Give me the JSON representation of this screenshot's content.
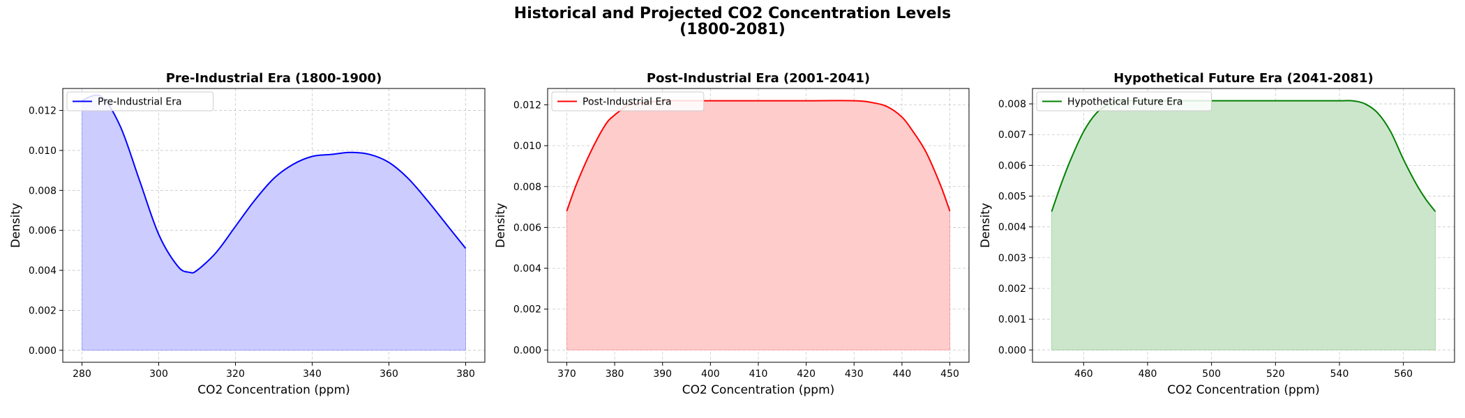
{
  "figure": {
    "title_line1": "Historical and Projected CO2 Concentration Levels",
    "title_line2": "(1800-2081)"
  },
  "chart_data": [
    {
      "type": "area",
      "title": "Pre-Industrial Era (1800-1900)",
      "xlabel": "CO2 Concentration (ppm)",
      "ylabel": "Density",
      "xlim": [
        275,
        385
      ],
      "ylim": [
        -0.0006,
        0.0131
      ],
      "xticks": [
        280,
        300,
        320,
        340,
        360,
        380
      ],
      "yticks": [
        0.0,
        0.002,
        0.004,
        0.006,
        0.008,
        0.01,
        0.012
      ],
      "ytick_labels": [
        "0.000",
        "0.002",
        "0.004",
        "0.006",
        "0.008",
        "0.010",
        "0.012"
      ],
      "grid": true,
      "legend": "upper-left",
      "series": [
        {
          "name": "Pre-Industrial Era",
          "color": "#0000ff",
          "fill": "#ccccff",
          "x": [
            280,
            285,
            290,
            295,
            300,
            305,
            308,
            310,
            315,
            320,
            325,
            330,
            335,
            340,
            345,
            350,
            355,
            360,
            365,
            370,
            375,
            380
          ],
          "y": [
            0.0125,
            0.0127,
            0.0112,
            0.0085,
            0.0058,
            0.0042,
            0.0039,
            0.004,
            0.0049,
            0.0062,
            0.0075,
            0.0086,
            0.0093,
            0.0097,
            0.0098,
            0.0099,
            0.0098,
            0.0094,
            0.0086,
            0.0075,
            0.0063,
            0.0051
          ]
        }
      ]
    },
    {
      "type": "area",
      "title": "Post-Industrial Era (2001-2041)",
      "xlabel": "CO2 Concentration (ppm)",
      "ylabel": "Density",
      "xlim": [
        366,
        454
      ],
      "ylim": [
        -0.0006,
        0.0128
      ],
      "xticks": [
        370,
        380,
        390,
        400,
        410,
        420,
        430,
        440,
        450
      ],
      "yticks": [
        0.0,
        0.002,
        0.004,
        0.006,
        0.008,
        0.01,
        0.012
      ],
      "ytick_labels": [
        "0.000",
        "0.002",
        "0.004",
        "0.006",
        "0.008",
        "0.010",
        "0.012"
      ],
      "grid": true,
      "legend": "upper-left",
      "series": [
        {
          "name": "Post-Industrial Era",
          "color": "#ff0000",
          "fill": "#ffcccc",
          "x": [
            370,
            372,
            375,
            378,
            380,
            383,
            386,
            390,
            395,
            400,
            410,
            420,
            430,
            434,
            437,
            440,
            442,
            445,
            448,
            450
          ],
          "y": [
            0.0068,
            0.0081,
            0.0097,
            0.011,
            0.0115,
            0.012,
            0.0121,
            0.0122,
            0.0122,
            0.0122,
            0.0122,
            0.0122,
            0.0122,
            0.0121,
            0.0119,
            0.0114,
            0.0108,
            0.0097,
            0.0081,
            0.0068
          ]
        }
      ]
    },
    {
      "type": "area",
      "title": "Hypothetical Future Era (2041-2081)",
      "xlabel": "CO2 Concentration (ppm)",
      "ylabel": "Density",
      "xlim": [
        444,
        576
      ],
      "ylim": [
        -0.0004,
        0.0085
      ],
      "xticks": [
        460,
        480,
        500,
        520,
        540,
        560
      ],
      "yticks": [
        0.0,
        0.001,
        0.002,
        0.003,
        0.004,
        0.005,
        0.006,
        0.007,
        0.008
      ],
      "ytick_labels": [
        "0.000",
        "0.001",
        "0.002",
        "0.003",
        "0.004",
        "0.005",
        "0.006",
        "0.007",
        "0.008"
      ],
      "grid": true,
      "legend": "upper-left",
      "series": [
        {
          "name": "Hypothetical Future Era",
          "color": "#008000",
          "fill": "#cce6cc",
          "x": [
            450,
            453,
            456,
            460,
            464,
            468,
            472,
            476,
            480,
            490,
            500,
            510,
            520,
            530,
            540,
            544,
            548,
            552,
            556,
            560,
            564,
            567,
            570
          ],
          "y": [
            0.0045,
            0.0054,
            0.0062,
            0.0071,
            0.0077,
            0.008,
            0.0081,
            0.0081,
            0.0081,
            0.0081,
            0.0081,
            0.0081,
            0.0081,
            0.0081,
            0.0081,
            0.0081,
            0.008,
            0.0077,
            0.0071,
            0.0062,
            0.0054,
            0.0049,
            0.0045
          ]
        }
      ]
    }
  ]
}
